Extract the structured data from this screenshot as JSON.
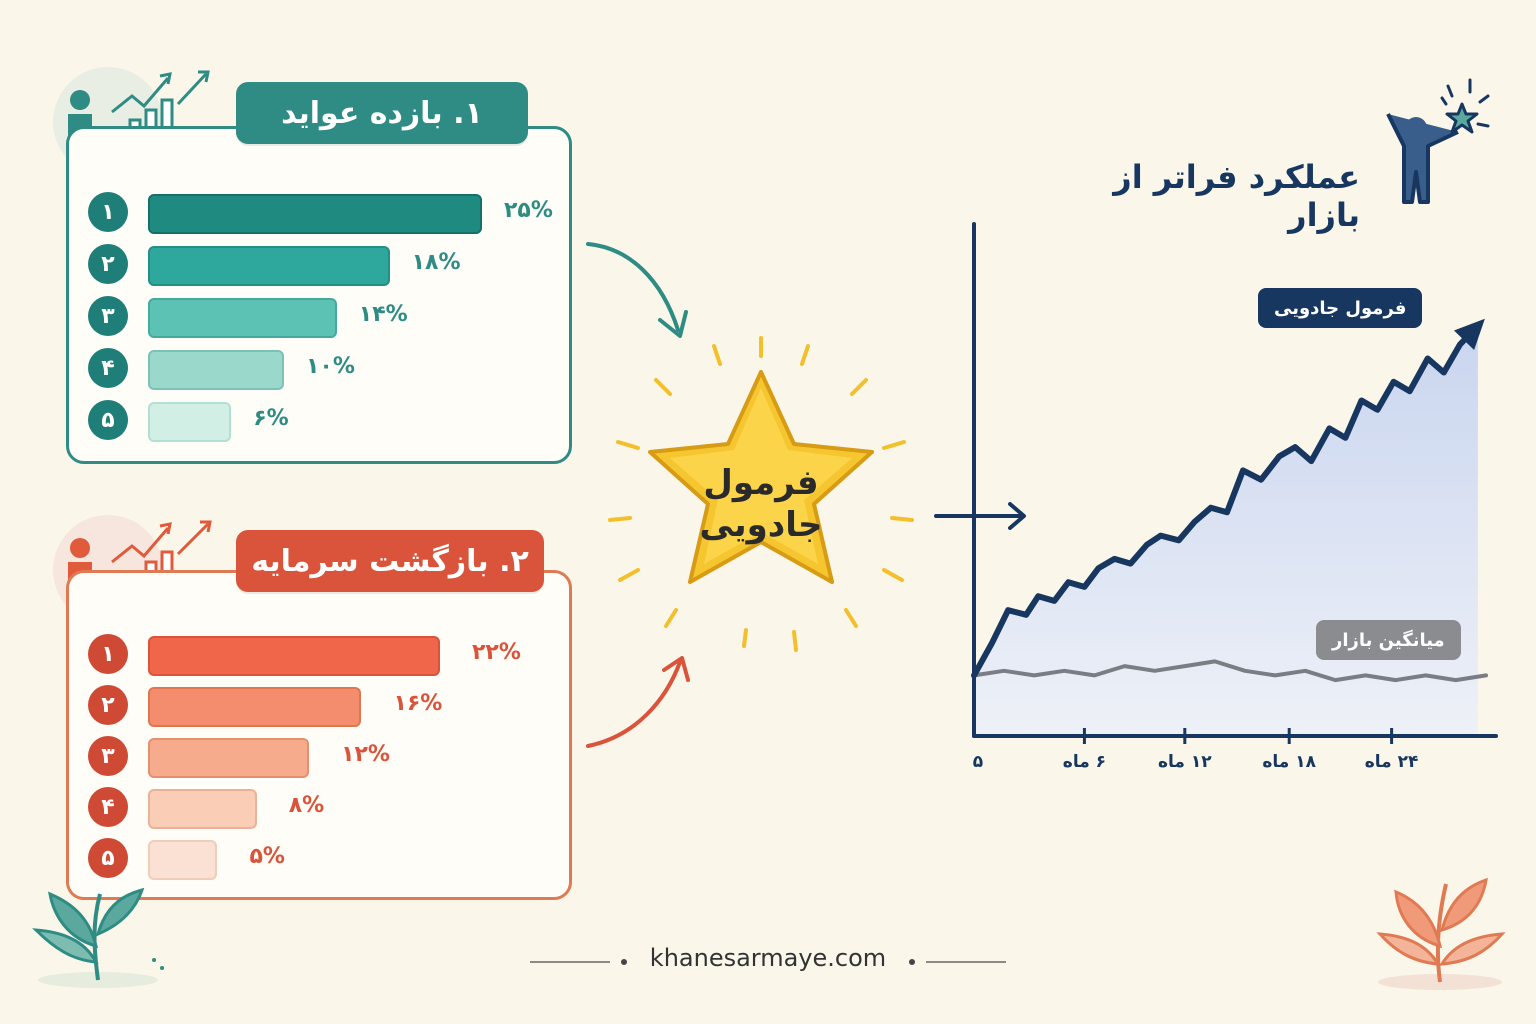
{
  "left_panels": {
    "returns": {
      "title": "۱. بازده عواید",
      "ranks": [
        "۱",
        "۲",
        "۳",
        "۴",
        "۵"
      ],
      "labels": [
        "۲۵%",
        "۱۸%",
        "۱۴%",
        "۱۰%",
        "۶%"
      ]
    },
    "payback": {
      "title": "۲. بازگشت سرمایه",
      "ranks": [
        "۱",
        "۲",
        "۳",
        "۴",
        "۵"
      ],
      "labels": [
        "۲۲%",
        "۱۶%",
        "۱۲%",
        "۸%",
        "۵%"
      ]
    }
  },
  "star": {
    "line1": "فرمول",
    "line2": "جادویی"
  },
  "chart": {
    "title": "عملکرد فراتر از بازار",
    "tag_formula": "فرمول جادویی",
    "tag_market": "میانگین بازار",
    "tick_labels": [
      "۵",
      "۶ ماه",
      "۱۲ ماه",
      "۱۸ ماه",
      "۲۴ ماه"
    ]
  },
  "footer": {
    "site": "khanesarmaye.com"
  },
  "colors": {
    "teal": "#2e8c84",
    "red": "#d9543b",
    "navy": "#173760",
    "gold": "#f6c630"
  },
  "chart_data": [
    {
      "type": "bar",
      "title": "۱. بازده عواید",
      "categories": [
        "۱",
        "۲",
        "۳",
        "۴",
        "۵"
      ],
      "values": [
        25,
        18,
        14,
        10,
        6
      ],
      "xlim": [
        0,
        25
      ]
    },
    {
      "type": "bar",
      "title": "۲. بازگشت سرمایه",
      "categories": [
        "۱",
        "۲",
        "۳",
        "۴",
        "۵"
      ],
      "values": [
        22,
        16,
        12,
        8,
        5
      ],
      "xlim": [
        0,
        22
      ]
    },
    {
      "type": "line",
      "title": "عملکرد فراتر از بازار",
      "x_ticks": [
        "۵",
        "۶ ماه",
        "۱۲ ماه",
        "۱۸ ماه",
        "۲۴ ماه"
      ],
      "xlim": [
        0,
        26
      ],
      "ylim": [
        0,
        100
      ],
      "series": [
        {
          "name": "فرمول جادویی",
          "x": [
            0,
            0.9,
            1.7,
            2.6,
            3.2,
            4.0,
            4.7,
            5.5,
            6.2,
            7.0,
            7.8,
            8.6,
            9.3,
            10.2,
            11.0,
            11.8,
            12.6,
            13.4,
            14.3,
            15.2,
            16.0,
            16.8,
            17.7,
            18.5,
            19.3,
            20.1,
            20.9,
            21.7,
            22.6,
            23.4,
            24.2,
            25.1
          ],
          "y": [
            13,
            20,
            27,
            26,
            30,
            29,
            33,
            32,
            36,
            38,
            37,
            41,
            43,
            42,
            46,
            49,
            48,
            57,
            55,
            60,
            62,
            59,
            66,
            64,
            72,
            70,
            76,
            74,
            81,
            78,
            84,
            88
          ]
        },
        {
          "name": "میانگین بازار",
          "x": [
            0,
            1.5,
            3,
            4.5,
            6,
            7.5,
            9,
            10.5,
            12,
            13.5,
            15,
            16.5,
            18,
            19.5,
            21,
            22.5,
            24,
            25.5
          ],
          "y": [
            13,
            14,
            13,
            14,
            13,
            15,
            14,
            15,
            16,
            14,
            13,
            14,
            12,
            13,
            12,
            13,
            12,
            13
          ]
        }
      ]
    }
  ]
}
